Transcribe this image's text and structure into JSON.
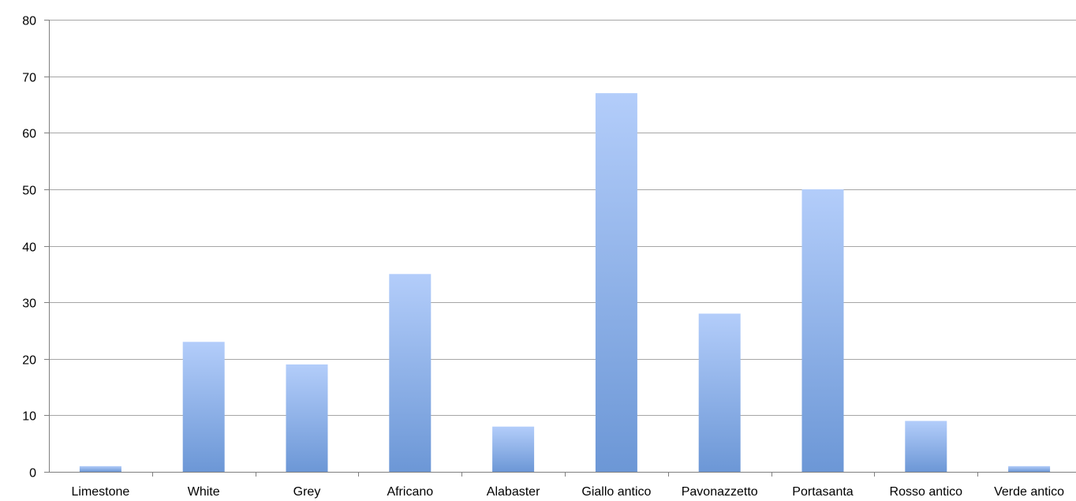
{
  "chart_data": {
    "type": "bar",
    "title": "",
    "xlabel": "",
    "ylabel": "",
    "ylim": [
      0,
      80
    ],
    "yticks": [
      0,
      10,
      20,
      30,
      40,
      50,
      60,
      70,
      80
    ],
    "grid": true,
    "legend": "none",
    "categories": [
      "Limestone",
      "White",
      "Grey",
      "Africano",
      "Alabaster",
      "Giallo antico",
      "Pavonazzetto",
      "Portasanta",
      "Rosso antico",
      "Verde antico"
    ],
    "values": [
      1,
      23,
      19,
      35,
      8,
      67,
      28,
      50,
      9,
      1
    ],
    "colors": {
      "bar_top": "#b3cdfa",
      "bar_bottom": "#6c97d6",
      "grid": "#a6a6a6",
      "axis": "#7f7f7f"
    }
  }
}
